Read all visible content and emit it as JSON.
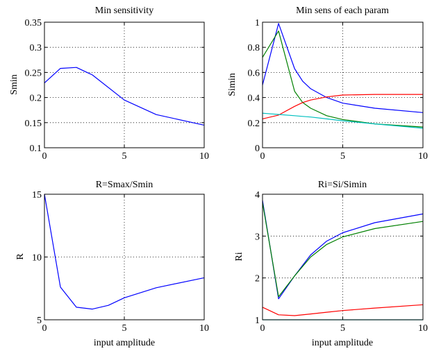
{
  "chart_data": [
    {
      "type": "line",
      "title": "Min sensitivity",
      "xlabel": "",
      "ylabel": "Smin",
      "xlim": [
        0,
        10
      ],
      "ylim": [
        0.1,
        0.35
      ],
      "xticks": [
        "0",
        "5",
        "10"
      ],
      "yticks": [
        "0.1",
        "0.15",
        "0.2",
        "0.25",
        "0.3",
        "0.35"
      ],
      "grid": true,
      "x": [
        0,
        1,
        2,
        3,
        5,
        7,
        10
      ],
      "series": [
        {
          "color": "#0000ff",
          "values": [
            0.229,
            0.258,
            0.26,
            0.245,
            0.195,
            0.166,
            0.145
          ]
        }
      ]
    },
    {
      "type": "line",
      "title": "Min sens of each param",
      "xlabel": "",
      "ylabel": "Simin",
      "xlim": [
        0,
        10
      ],
      "ylim": [
        0,
        1
      ],
      "xticks": [
        "0",
        "5",
        "10"
      ],
      "yticks": [
        "0",
        "0.2",
        "0.4",
        "0.6",
        "0.8",
        "1"
      ],
      "grid": true,
      "x": [
        0,
        1,
        2,
        2.5,
        3,
        4,
        5,
        7,
        10
      ],
      "series": [
        {
          "color": "#0000ff",
          "values": [
            0.5,
            0.99,
            0.63,
            0.53,
            0.47,
            0.4,
            0.355,
            0.315,
            0.28
          ]
        },
        {
          "color": "#008000",
          "values": [
            0.72,
            0.93,
            0.45,
            0.36,
            0.315,
            0.255,
            0.225,
            0.19,
            0.165
          ]
        },
        {
          "color": "#ff0000",
          "values": [
            0.23,
            0.26,
            0.33,
            0.36,
            0.38,
            0.405,
            0.42,
            0.425,
            0.425
          ]
        },
        {
          "color": "#00bfbf",
          "values": [
            0.275,
            0.265,
            0.255,
            0.25,
            0.245,
            0.23,
            0.215,
            0.19,
            0.155
          ]
        }
      ]
    },
    {
      "type": "line",
      "title": "R=Smax/Smin",
      "xlabel": "input amplitude",
      "ylabel": "R",
      "xlim": [
        0,
        10
      ],
      "ylim": [
        5,
        15
      ],
      "xticks": [
        "0",
        "5",
        "10"
      ],
      "yticks": [
        "5",
        "10",
        "15"
      ],
      "grid": true,
      "x": [
        0,
        1,
        2,
        3,
        4,
        5,
        7,
        10
      ],
      "series": [
        {
          "color": "#0000ff",
          "values": [
            15,
            7.6,
            6.0,
            5.85,
            6.15,
            6.75,
            7.55,
            8.35
          ]
        }
      ]
    },
    {
      "type": "line",
      "title": "Ri=Si/Simin",
      "xlabel": "input amplitude",
      "ylabel": "Ri",
      "xlim": [
        0,
        10
      ],
      "ylim": [
        1,
        4
      ],
      "xticks": [
        "0",
        "5",
        "10"
      ],
      "yticks": [
        "1",
        "2",
        "3",
        "4"
      ],
      "grid": true,
      "x": [
        0,
        1,
        2,
        3,
        4,
        5,
        7,
        10
      ],
      "series": [
        {
          "color": "#0000ff",
          "values": [
            3.85,
            1.5,
            2.05,
            2.55,
            2.88,
            3.08,
            3.32,
            3.53
          ]
        },
        {
          "color": "#008000",
          "values": [
            3.8,
            1.55,
            2.05,
            2.5,
            2.8,
            2.98,
            3.18,
            3.35
          ]
        },
        {
          "color": "#ff0000",
          "values": [
            1.3,
            1.12,
            1.1,
            1.14,
            1.18,
            1.22,
            1.28,
            1.36
          ]
        },
        {
          "color": "#00bfbf",
          "values": [
            1.0,
            1.0,
            1.0,
            1.0,
            1.0,
            1.0,
            1.0,
            1.0
          ]
        }
      ]
    }
  ]
}
